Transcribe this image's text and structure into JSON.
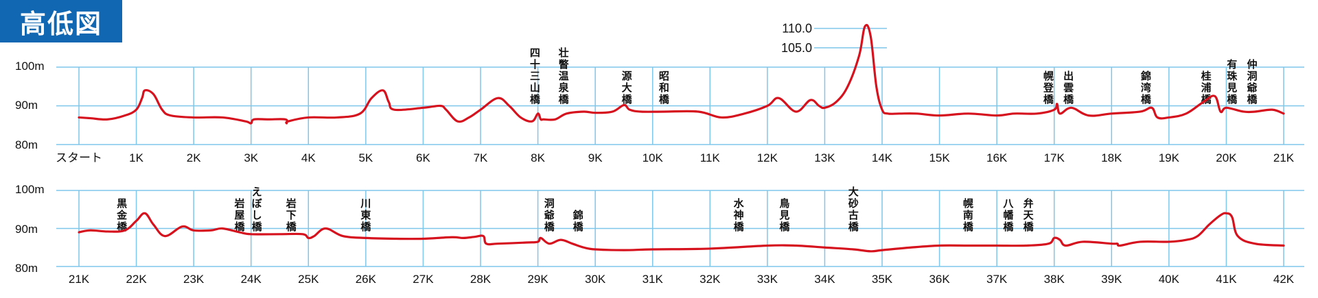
{
  "title": "高低図",
  "colors": {
    "title_bg": "#1167b1",
    "grid": "#7ec6ea",
    "line": "#d6121e"
  },
  "chart_data": [
    {
      "type": "line",
      "xlabel": "",
      "ylabel": "",
      "ylim": [
        80,
        100
      ],
      "xlim": [
        0,
        21
      ],
      "y_tick_labels": [
        "100m",
        "90m",
        "80m"
      ],
      "y_ticks": [
        100,
        90,
        80
      ],
      "x_ticks": [
        0,
        1,
        2,
        3,
        4,
        5,
        6,
        7,
        8,
        9,
        10,
        11,
        12,
        13,
        14,
        15,
        16,
        17,
        18,
        19,
        20,
        21
      ],
      "x_tick_labels": [
        "スタート",
        "1K",
        "2K",
        "3K",
        "4K",
        "5K",
        "6K",
        "7K",
        "8K",
        "9K",
        "10K",
        "11K",
        "12K",
        "13K",
        "14K",
        "15K",
        "16K",
        "17K",
        "18K",
        "19K",
        "20K",
        "21K"
      ],
      "peak_labels": [
        {
          "text": "110.0",
          "y": 110
        },
        {
          "text": "105.0",
          "y": 105
        }
      ],
      "series": [
        {
          "x": [
            0,
            0.2,
            0.5,
            0.8,
            1.0,
            1.1,
            1.15,
            1.3,
            1.45,
            1.6,
            2.0,
            2.5,
            2.9,
            3.0,
            3.05,
            3.3,
            3.6,
            3.62,
            3.65,
            4.0,
            4.5,
            4.9,
            5.1,
            5.3,
            5.4,
            5.5,
            6.0,
            6.3,
            6.4,
            6.6,
            6.8,
            7.0,
            7.3,
            7.5,
            7.7,
            7.9,
            8.0,
            8.05,
            8.1,
            8.3,
            8.5,
            8.8,
            9.0,
            9.3,
            9.5,
            9.6,
            9.8,
            10.2,
            10.8,
            11.2,
            11.6,
            12.0,
            12.2,
            12.5,
            12.75,
            12.9,
            13.0,
            13.2,
            13.4,
            13.6,
            13.7,
            13.8,
            13.9,
            14.0,
            14.1,
            14.3,
            14.6,
            15.0,
            15.5,
            16.0,
            16.3,
            16.7,
            17.0,
            17.05,
            17.1,
            17.3,
            17.6,
            18.0,
            18.5,
            18.7,
            18.8,
            19.0,
            19.3,
            19.6,
            19.8,
            19.9,
            20.0,
            20.3,
            20.5,
            20.8,
            21.0
          ],
          "y": [
            87,
            86.8,
            86.5,
            87.5,
            89,
            92,
            94,
            93,
            89,
            87.5,
            87,
            87,
            86,
            85.5,
            86.5,
            86.5,
            86.5,
            85.5,
            86,
            87,
            87,
            88,
            92,
            94,
            91,
            89,
            89.5,
            90,
            89,
            86,
            87,
            89,
            92,
            90,
            87,
            86,
            88,
            86.5,
            86.5,
            86.5,
            88,
            88.5,
            88.2,
            88.5,
            90.2,
            89,
            88.5,
            88.5,
            88.5,
            87,
            88,
            90,
            92,
            88.5,
            91.5,
            90,
            89.5,
            91,
            95,
            103,
            110.5,
            108,
            95,
            89,
            88,
            88,
            88,
            87.5,
            88,
            87.5,
            88,
            88,
            89,
            90.5,
            88,
            89.5,
            87.5,
            88,
            88.5,
            89.5,
            87,
            87,
            88,
            91,
            92.5,
            88.5,
            89.5,
            88.5,
            88.5,
            89,
            88
          ]
        }
      ],
      "landmarks": [
        {
          "text": "四十三山橋",
          "x": 7.95
        },
        {
          "text": "壮瞥温泉橋",
          "x": 8.45
        },
        {
          "text": "源大橋",
          "x": 9.55
        },
        {
          "text": "昭和橋",
          "x": 10.2
        },
        {
          "text": "幌登橋",
          "x": 16.9
        },
        {
          "text": "出雲橋",
          "x": 17.25
        },
        {
          "text": "錦湾橋",
          "x": 18.6
        },
        {
          "text": "桂浦橋",
          "x": 19.65
        },
        {
          "text": "有珠見橋",
          "x": 20.1
        },
        {
          "text": "仲洞爺橋",
          "x": 20.45
        }
      ]
    },
    {
      "type": "line",
      "xlabel": "",
      "ylabel": "",
      "ylim": [
        80,
        100
      ],
      "xlim": [
        21,
        42
      ],
      "y_tick_labels": [
        "100m",
        "90m",
        "80m"
      ],
      "y_ticks": [
        100,
        90,
        80
      ],
      "x_ticks": [
        21,
        22,
        23,
        24,
        25,
        26,
        27,
        28,
        29,
        30,
        31,
        32,
        33,
        34,
        35,
        36,
        37,
        38,
        39,
        40,
        41,
        42
      ],
      "x_tick_labels": [
        "21K",
        "22K",
        "23K",
        "24K",
        "25K",
        "26K",
        "27K",
        "28K",
        "29K",
        "30K",
        "31K",
        "32K",
        "33K",
        "34K",
        "35K",
        "36K",
        "37K",
        "38K",
        "39K",
        "40K",
        "41K",
        "42K"
      ],
      "series": [
        {
          "x": [
            21,
            21.2,
            21.5,
            21.8,
            22.0,
            22.15,
            22.3,
            22.5,
            22.8,
            23.0,
            23.3,
            23.5,
            23.8,
            24.0,
            24.5,
            24.9,
            25.0,
            25.1,
            25.3,
            25.6,
            26.0,
            26.5,
            27.0,
            27.5,
            27.7,
            27.9,
            28.05,
            28.1,
            28.3,
            28.8,
            29.0,
            29.05,
            29.2,
            29.4,
            29.6,
            29.8,
            30.0,
            30.5,
            31.0,
            32.0,
            33.0,
            33.5,
            34.0,
            34.5,
            34.8,
            35.0,
            35.5,
            36.0,
            36.5,
            37.0,
            37.5,
            37.9,
            38.0,
            38.1,
            38.2,
            38.5,
            39.0,
            39.1,
            39.15,
            39.5,
            40.0,
            40.3,
            40.5,
            40.7,
            40.9,
            41.0,
            41.1,
            41.2,
            41.5,
            42.0
          ],
          "y": [
            89,
            89.5,
            89.2,
            89.5,
            92,
            94,
            91,
            88,
            90.5,
            89.5,
            89.5,
            90,
            89,
            88.5,
            88.5,
            88.5,
            87.5,
            88,
            90,
            88,
            87.5,
            87.3,
            87.3,
            87.7,
            87.5,
            87.8,
            88,
            86,
            86,
            86.3,
            86.5,
            87.5,
            86,
            87,
            86,
            85,
            84.5,
            84.3,
            84.5,
            84.7,
            85.5,
            85.5,
            85,
            84.5,
            84,
            84.3,
            85,
            85.5,
            85.5,
            85.5,
            85.5,
            86,
            87.5,
            87,
            85.5,
            86.5,
            86,
            86,
            85.5,
            86.5,
            86.5,
            87,
            88,
            91,
            93.5,
            94,
            93,
            88,
            86,
            85.5
          ]
        }
      ],
      "landmarks": [
        {
          "text": "黒金橋",
          "x": 21.75
        },
        {
          "text": "岩屋橋",
          "x": 23.8
        },
        {
          "text": "えぼし橋",
          "x": 24.1
        },
        {
          "text": "岩下橋",
          "x": 24.7
        },
        {
          "text": "川東橋",
          "x": 26.0
        },
        {
          "text": "洞爺橋",
          "x": 29.2
        },
        {
          "text": "錦橋",
          "x": 29.7
        },
        {
          "text": "水神橋",
          "x": 32.5
        },
        {
          "text": "鳥見橋",
          "x": 33.3
        },
        {
          "text": "大砂古橋",
          "x": 34.5
        },
        {
          "text": "幌南橋",
          "x": 36.5
        },
        {
          "text": "八幡橋",
          "x": 37.2
        },
        {
          "text": "弁天橋",
          "x": 37.55
        }
      ]
    }
  ]
}
